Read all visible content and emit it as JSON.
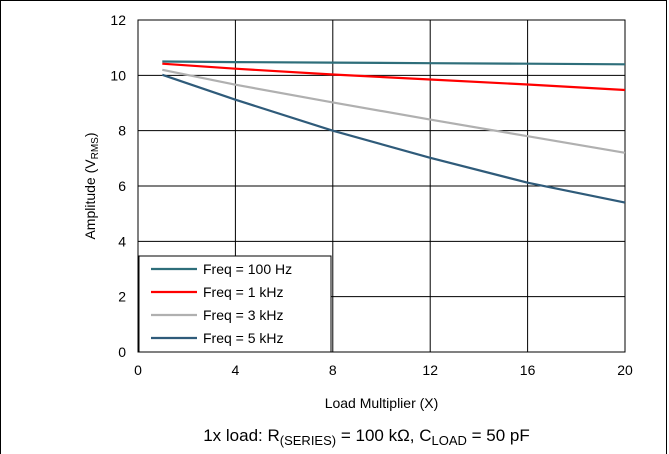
{
  "chart_data": {
    "type": "line",
    "xlabel": "Load Multiplier (X)",
    "ylabel_main": "Amplitude (V",
    "ylabel_sub": "RMS",
    "ylabel_close": ")",
    "xlim": [
      0,
      20
    ],
    "ylim": [
      0,
      12
    ],
    "xticks": [
      0,
      4,
      8,
      12,
      16,
      20
    ],
    "yticks": [
      0,
      2,
      4,
      6,
      8,
      10,
      12
    ],
    "grid": true,
    "legend_position": "bottom-left",
    "series": [
      {
        "name": "Freq = 100 Hz",
        "color": "#2e6e7a",
        "x": [
          1,
          4,
          8,
          12,
          16,
          20
        ],
        "y": [
          10.5,
          10.48,
          10.46,
          10.44,
          10.42,
          10.4
        ]
      },
      {
        "name": "Freq = 1 kHz",
        "color": "#ff0000",
        "x": [
          1,
          4,
          8,
          12,
          16,
          20
        ],
        "y": [
          10.42,
          10.24,
          10.03,
          9.85,
          9.67,
          9.47
        ]
      },
      {
        "name": "Freq = 3 kHz",
        "color": "#b0b0b0",
        "x": [
          1,
          4,
          8,
          12,
          16,
          20
        ],
        "y": [
          10.2,
          9.66,
          9.02,
          8.4,
          7.8,
          7.2
        ]
      },
      {
        "name": "Freq = 5 kHz",
        "color": "#2f5b7a",
        "x": [
          1,
          4,
          8,
          12,
          16,
          20
        ],
        "y": [
          10.02,
          9.12,
          8.0,
          7.02,
          6.12,
          5.4
        ]
      }
    ],
    "footnote": {
      "prefix": "1x load: R",
      "sub1": "(SERIES)",
      "middle": " = 100 kΩ, C",
      "sub2": "LOAD",
      "suffix": " = 50 pF"
    }
  }
}
